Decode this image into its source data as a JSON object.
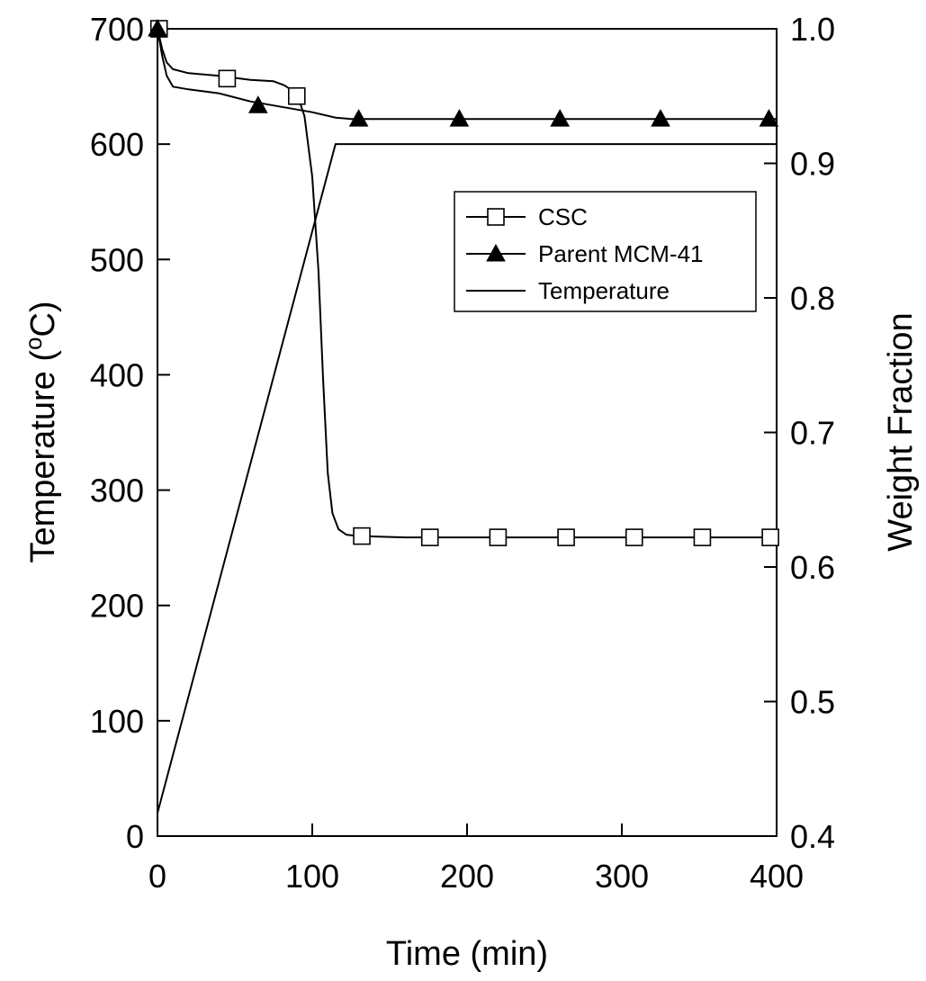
{
  "chart_data": {
    "type": "line",
    "title": "",
    "xlabel": "Time (min)",
    "ylabel_left": {
      "prefix": "Temperature (",
      "sup": "o",
      "suffix": "C)"
    },
    "ylabel_right": "Weight Fraction",
    "xlim": [
      0,
      400
    ],
    "ylim_left": [
      0,
      700
    ],
    "ylim_right": [
      0.4,
      1.0
    ],
    "x_ticks": [
      0,
      100,
      200,
      300,
      400
    ],
    "y_left_ticks": [
      0,
      100,
      200,
      300,
      400,
      500,
      600,
      700
    ],
    "y_right_ticks": [
      0.4,
      0.5,
      0.6,
      0.7,
      0.8,
      0.9,
      1.0
    ],
    "x_tick_labels": [
      "0",
      "100",
      "200",
      "300",
      "400"
    ],
    "y_left_tick_labels": [
      "0",
      "100",
      "200",
      "300",
      "400",
      "500",
      "600",
      "700"
    ],
    "y_right_tick_labels": [
      "0.4",
      "0.5",
      "0.6",
      "0.7",
      "0.8",
      "0.9",
      "1.0"
    ],
    "grid": false,
    "legend_position": "upper-right",
    "series": [
      {
        "name": "CSC",
        "axis": "right",
        "marker": "open-square",
        "color": "#000000",
        "curve": [
          [
            0,
            1.0
          ],
          [
            3,
            0.985
          ],
          [
            6,
            0.975
          ],
          [
            10,
            0.97
          ],
          [
            20,
            0.967
          ],
          [
            40,
            0.965
          ],
          [
            60,
            0.962
          ],
          [
            75,
            0.961
          ],
          [
            82,
            0.958
          ],
          [
            90,
            0.952
          ],
          [
            95,
            0.935
          ],
          [
            100,
            0.89
          ],
          [
            104,
            0.82
          ],
          [
            107,
            0.74
          ],
          [
            110,
            0.67
          ],
          [
            113,
            0.64
          ],
          [
            117,
            0.628
          ],
          [
            122,
            0.624
          ],
          [
            130,
            0.623
          ],
          [
            160,
            0.622
          ],
          [
            250,
            0.622
          ],
          [
            400,
            0.622
          ]
        ],
        "markers": [
          [
            1,
            1.0
          ],
          [
            45,
            0.963
          ],
          [
            90,
            0.95
          ],
          [
            132,
            0.623
          ],
          [
            176,
            0.622
          ],
          [
            220,
            0.622
          ],
          [
            264,
            0.622
          ],
          [
            308,
            0.622
          ],
          [
            352,
            0.622
          ],
          [
            396,
            0.622
          ]
        ]
      },
      {
        "name": "Parent MCM-41",
        "axis": "right",
        "marker": "filled-triangle",
        "color": "#000000",
        "curve": [
          [
            0,
            1.0
          ],
          [
            3,
            0.98
          ],
          [
            6,
            0.965
          ],
          [
            10,
            0.957
          ],
          [
            20,
            0.955
          ],
          [
            40,
            0.952
          ],
          [
            60,
            0.946
          ],
          [
            80,
            0.942
          ],
          [
            100,
            0.938
          ],
          [
            115,
            0.934
          ],
          [
            125,
            0.933
          ],
          [
            150,
            0.933
          ],
          [
            250,
            0.933
          ],
          [
            400,
            0.933
          ]
        ],
        "markers": [
          [
            0,
            1.0
          ],
          [
            65,
            0.943
          ],
          [
            130,
            0.933
          ],
          [
            195,
            0.933
          ],
          [
            260,
            0.933
          ],
          [
            325,
            0.933
          ],
          [
            395,
            0.933
          ]
        ]
      },
      {
        "name": "Temperature",
        "axis": "left",
        "marker": "none",
        "color": "#000000",
        "curve": [
          [
            0,
            20
          ],
          [
            115,
            600
          ],
          [
            400,
            600
          ]
        ]
      }
    ]
  }
}
